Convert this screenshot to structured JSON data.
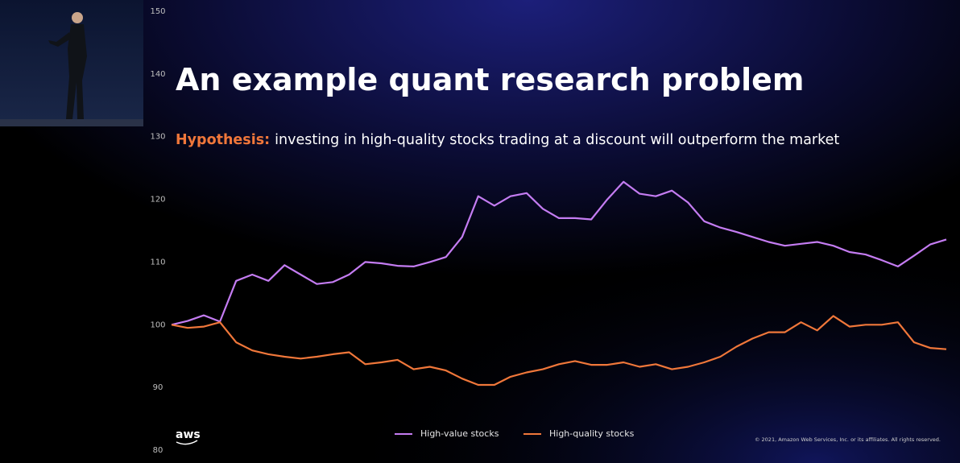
{
  "chart_data": {
    "type": "line",
    "title": "An example quant research problem",
    "subtitle_label": "Hypothesis:",
    "subtitle": "investing in high-quality stocks trading at a discount will outperform the market",
    "categories": [
      null,
      null,
      null,
      null,
      null,
      null,
      null,
      null,
      null,
      null,
      null,
      null,
      null,
      null,
      null,
      null,
      null,
      null,
      null,
      null,
      null,
      null,
      null,
      null,
      null,
      null,
      null,
      null,
      null,
      null,
      null,
      null,
      null,
      null,
      null,
      null,
      null,
      null,
      null,
      null,
      null,
      null,
      null,
      null,
      null,
      null,
      null,
      null,
      null
    ],
    "series": [
      {
        "name": "High-value stocks",
        "color": "#c47cf2",
        "values": [
          100,
          100.6,
          101.5,
          100.5,
          107,
          108,
          107,
          109.5,
          108,
          106.5,
          106.8,
          108,
          110,
          109.8,
          109.4,
          109.3,
          110,
          110.8,
          114,
          120.5,
          119,
          120.5,
          121,
          118.5,
          117,
          117,
          116.8,
          120,
          122.8,
          120.9,
          120.5,
          121.4,
          119.5,
          116.5,
          115.5,
          114.8,
          114,
          113.2,
          112.6,
          112.9,
          113.2,
          112.6,
          111.6,
          111.2,
          110.3,
          109.3,
          111,
          112.8,
          113.6
        ]
      },
      {
        "name": "High-quality stocks",
        "color": "#f0773a",
        "values": [
          100,
          99.5,
          99.7,
          100.4,
          97.2,
          95.9,
          95.3,
          94.9,
          94.6,
          94.9,
          95.3,
          95.6,
          93.7,
          94,
          94.4,
          92.9,
          93.3,
          92.7,
          91.4,
          90.4,
          90.4,
          91.7,
          92.4,
          92.9,
          93.7,
          94.2,
          93.6,
          93.6,
          94,
          93.3,
          93.7,
          92.9,
          93.3,
          94,
          94.9,
          96.5,
          97.8,
          98.8,
          98.8,
          100.4,
          99.1,
          101.4,
          99.7,
          100,
          100,
          100.4,
          97.2,
          96.3,
          96.1
        ]
      }
    ],
    "ylim": [
      80,
      150
    ],
    "yticks": [
      80,
      90,
      100,
      110,
      120,
      130,
      140,
      150
    ],
    "grid": false
  },
  "footer": {
    "logo": "aws",
    "copyright": "© 2021, Amazon Web Services, Inc. or its affiliates. All rights reserved."
  }
}
